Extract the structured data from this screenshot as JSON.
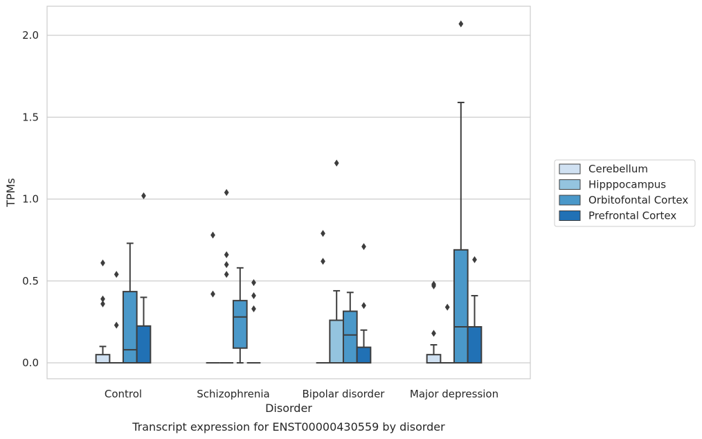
{
  "chart_data": {
    "type": "box",
    "caption": "Transcript expression for ENST00000430559 by disorder",
    "xlabel": "Disorder",
    "ylabel": "TPMs",
    "ylim": [
      -0.1,
      2.18
    ],
    "yticks": [
      0.0,
      0.5,
      1.0,
      1.5,
      2.0
    ],
    "ytick_labels": [
      "0.0",
      "0.5",
      "1.0",
      "1.5",
      "2.0"
    ],
    "grid": "horizontal",
    "legend_position": "right",
    "categories": [
      "Control",
      "Schizophrenia",
      "Bipolar disorder",
      "Major depression"
    ],
    "series": [
      {
        "name": "Cerebellum",
        "color": "#d0e1f2",
        "boxes": [
          {
            "q1": 0.0,
            "median": 0.0,
            "q3": 0.05,
            "whisker_low": 0.0,
            "whisker_high": 0.1,
            "outliers": [
              0.36,
              0.39,
              0.61
            ]
          },
          {
            "q1": 0.0,
            "median": 0.0,
            "q3": 0.0,
            "whisker_low": 0.0,
            "whisker_high": 0.0,
            "outliers": [
              0.42,
              0.78
            ]
          },
          {
            "q1": 0.0,
            "median": 0.0,
            "q3": 0.0,
            "whisker_low": 0.0,
            "whisker_high": 0.0,
            "outliers": [
              0.62,
              0.79
            ]
          },
          {
            "q1": 0.0,
            "median": 0.0,
            "q3": 0.05,
            "whisker_low": 0.0,
            "whisker_high": 0.11,
            "outliers": [
              0.18,
              0.47,
              0.48
            ]
          }
        ]
      },
      {
        "name": "Hipppocampus",
        "color": "#94c4df",
        "boxes": [
          {
            "q1": 0.0,
            "median": 0.0,
            "q3": 0.0,
            "whisker_low": 0.0,
            "whisker_high": 0.0,
            "outliers": [
              0.23,
              0.54
            ]
          },
          {
            "q1": 0.0,
            "median": 0.0,
            "q3": 0.0,
            "whisker_low": 0.0,
            "whisker_high": 0.0,
            "outliers": [
              0.54,
              0.6,
              0.66,
              1.04
            ]
          },
          {
            "q1": 0.0,
            "median": 0.0,
            "q3": 0.26,
            "whisker_low": 0.0,
            "whisker_high": 0.44,
            "outliers": [
              1.22
            ]
          },
          {
            "q1": 0.0,
            "median": 0.0,
            "q3": 0.0,
            "whisker_low": 0.0,
            "whisker_high": 0.0,
            "outliers": [
              0.34
            ]
          }
        ]
      },
      {
        "name": "Orbitofontal Cortex",
        "color": "#4a98c9",
        "boxes": [
          {
            "q1": 0.0,
            "median": 0.08,
            "q3": 0.435,
            "whisker_low": 0.0,
            "whisker_high": 0.73,
            "outliers": []
          },
          {
            "q1": 0.09,
            "median": 0.28,
            "q3": 0.38,
            "whisker_low": 0.0,
            "whisker_high": 0.58,
            "outliers": []
          },
          {
            "q1": 0.0,
            "median": 0.17,
            "q3": 0.315,
            "whisker_low": 0.0,
            "whisker_high": 0.43,
            "outliers": []
          },
          {
            "q1": 0.0,
            "median": 0.22,
            "q3": 0.69,
            "whisker_low": 0.0,
            "whisker_high": 1.59,
            "outliers": [
              2.07
            ]
          }
        ]
      },
      {
        "name": "Prefrontal Cortex",
        "color": "#2171b5",
        "boxes": [
          {
            "q1": 0.0,
            "median": 0.0,
            "q3": 0.225,
            "whisker_low": 0.0,
            "whisker_high": 0.4,
            "outliers": [
              1.02
            ]
          },
          {
            "q1": 0.0,
            "median": 0.0,
            "q3": 0.0,
            "whisker_low": 0.0,
            "whisker_high": 0.0,
            "outliers": [
              0.33,
              0.41,
              0.49
            ]
          },
          {
            "q1": 0.0,
            "median": 0.0,
            "q3": 0.095,
            "whisker_low": 0.0,
            "whisker_high": 0.2,
            "outliers": [
              0.35,
              0.71
            ]
          },
          {
            "q1": 0.0,
            "median": 0.0,
            "q3": 0.22,
            "whisker_low": 0.0,
            "whisker_high": 0.41,
            "outliers": [
              0.63
            ]
          }
        ]
      }
    ]
  }
}
